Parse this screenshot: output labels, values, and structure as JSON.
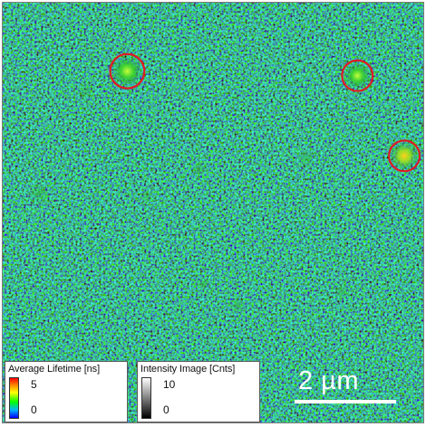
{
  "image": {
    "colors": {
      "background": "#0a1a18",
      "circle_marker": "#e01a24",
      "scale_bar": "#ffffff"
    }
  },
  "legends": {
    "lifetime": {
      "title": "Average Lifetime [ns]",
      "max": "5",
      "min": "0",
      "colormap": "rainbow"
    },
    "intensity": {
      "title": "Intensity Image [Cnts]",
      "max": "10",
      "min": "0",
      "colormap": "grayscale"
    }
  },
  "scale_bar": {
    "label": "2 µm"
  }
}
